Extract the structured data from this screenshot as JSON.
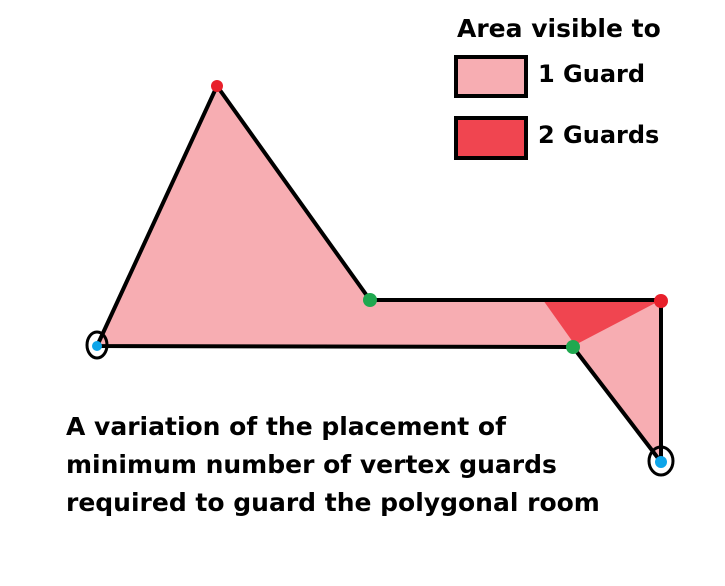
{
  "legend": {
    "title": "Area visible to",
    "items": [
      {
        "label": "1 Guard",
        "color": "#f7adb2"
      },
      {
        "label": "2 Guards",
        "color": "#f04550"
      }
    ]
  },
  "caption": {
    "lines": [
      "A variation of the placement of",
      "minimum number of vertex guards",
      "required to guard the polygonal room"
    ]
  },
  "colors": {
    "guard_red": "#e8202b",
    "guard_green": "#1fa84f",
    "guard_blue": "#0ea5e9",
    "outline": "#000000"
  }
}
